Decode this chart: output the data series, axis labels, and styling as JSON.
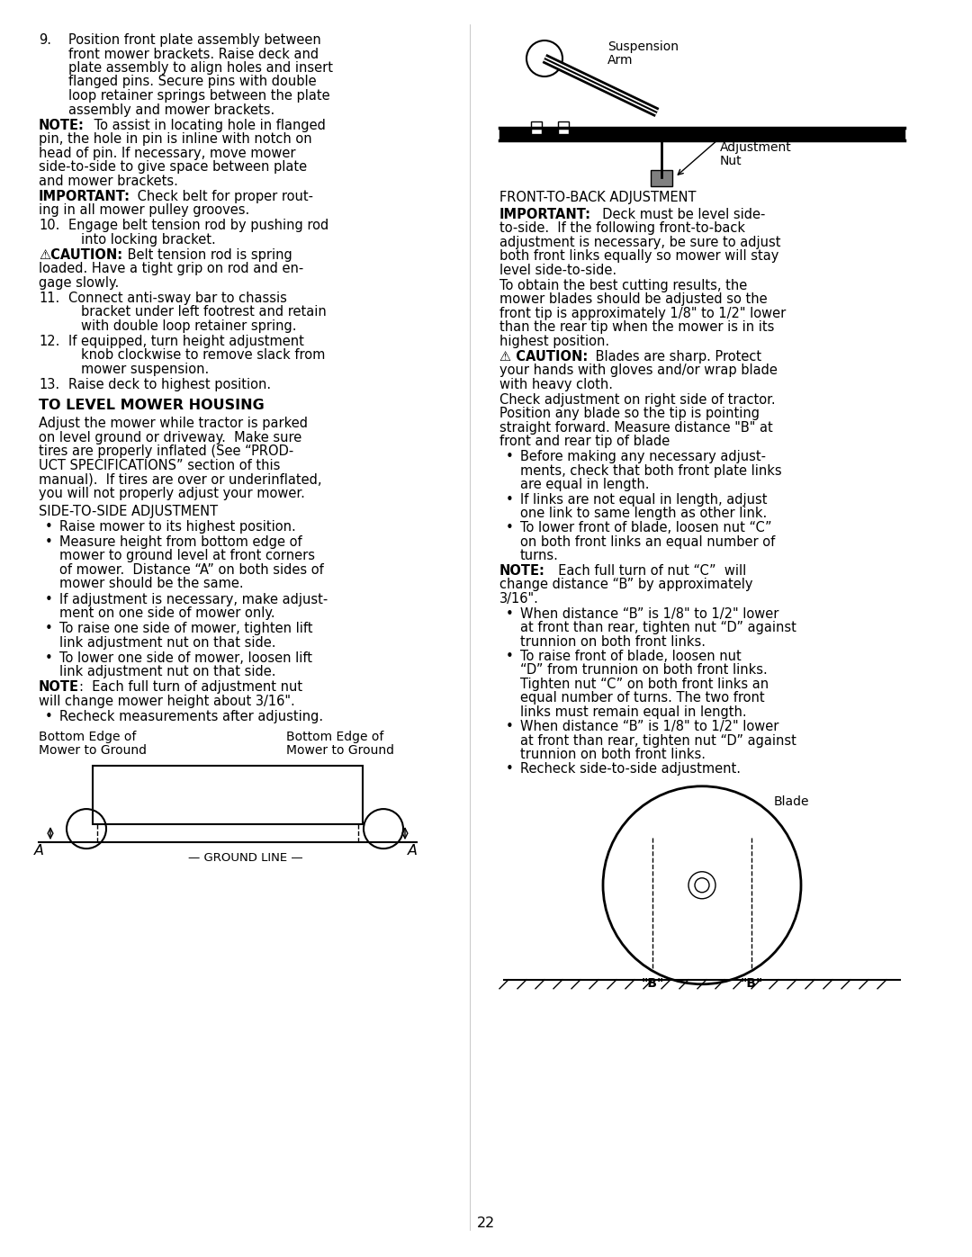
{
  "page_number": "22",
  "background_color": "#ffffff",
  "text_color": "#000000",
  "left_column": {
    "items": [
      {
        "type": "numbered_item",
        "number": "9.",
        "indent": 0.52,
        "text": "Position front plate assembly between\nfront mower brackets. Raise deck and\nplate assembly to align holes and insert\nflanged pins. Secure pins with double\nloop retainer springs between the plate\nassembly and mower brackets.",
        "bold_prefix": "",
        "font_size": 11.5
      },
      {
        "type": "paragraph",
        "bold_prefix": "NOTE:",
        "text": " To assist in locating hole in flanged\npin, the hole in pin is inline with notch on\nhead of pin. If necessary, move mower\nside-to-side to give space between plate\nand mower brackets.",
        "font_size": 11.5,
        "indent": 0.15
      },
      {
        "type": "paragraph",
        "bold_prefix": "IMPORTANT:",
        "text": "  Check belt for proper rout-\ning in all mower pulley grooves.",
        "font_size": 11.5,
        "indent": 0.15
      },
      {
        "type": "numbered_item",
        "number": "10.",
        "indent": 0.42,
        "text": "Engage belt tension rod by pushing rod\n    into locking bracket.",
        "bold_prefix": "",
        "font_size": 11.5
      },
      {
        "type": "caution",
        "bold_prefix": "⚠CAUTION:",
        "text": " Belt tension rod is spring\nloaded. Have a tight grip on rod and en-\ngage slowly.",
        "font_size": 11.5,
        "indent": 0.15
      },
      {
        "type": "numbered_item",
        "number": "11.",
        "indent": 0.42,
        "text": "Connect anti-sway bar to chassis\n      bracket under left footrest and retain\n      with double loop retainer spring.",
        "bold_prefix": "",
        "font_size": 11.5
      },
      {
        "type": "numbered_item",
        "number": "12.",
        "indent": 0.42,
        "text": "If equipped, turn height adjustment\n      knob clockwise to remove slack from\n      mower suspension.",
        "bold_prefix": "",
        "font_size": 11.5
      },
      {
        "type": "numbered_item",
        "number": "13.",
        "indent": 0.42,
        "text": "Raise deck to highest position.",
        "bold_prefix": "",
        "font_size": 11.5
      },
      {
        "type": "section_header",
        "text": "TO LEVEL MOWER HOUSING",
        "font_size": 12.5,
        "bold": true
      },
      {
        "type": "paragraph",
        "bold_prefix": "",
        "text": "Adjust the mower while tractor is parked\non level ground or driveway.  Make sure\ntires are properly inflated (See “PROD-\nUCT SPECIFICATIONS” section of this\nmanual).  If tires are over or underinflated,\nyou will not properly adjust your mower.",
        "font_size": 11.5,
        "indent": 0.15
      },
      {
        "type": "subsection_header",
        "text": "SIDE-TO-SIDE ADJUSTMENT",
        "font_size": 11.5,
        "bold": false
      },
      {
        "type": "bullet",
        "text": "Raise mower to its highest position.",
        "font_size": 11.5
      },
      {
        "type": "bullet",
        "text": "Measure height from bottom edge of\nmower to ground level at front corners\nof mower.  Distance “A” on both sides of\nmower should be the same.",
        "font_size": 11.5
      },
      {
        "type": "bullet",
        "text": "If adjustment is necessary, make adjust-\nment on one side of mower only.",
        "font_size": 11.5
      },
      {
        "type": "bullet",
        "text": "To raise one side of mower, tighten lift\nlink adjustment nut on that side.",
        "font_size": 11.5
      },
      {
        "type": "bullet",
        "text": "To lower one side of mower, loosen lift\nlink adjustment nut on that side.",
        "font_size": 11.5
      },
      {
        "type": "paragraph",
        "bold_prefix": "NOTE",
        "text": ":  Each full turn of adjustment nut\nwill change mower height about 3/16\".",
        "font_size": 11.5,
        "indent": 0.15
      },
      {
        "type": "bullet",
        "text": "Recheck measurements after adjusting.",
        "font_size": 11.5
      }
    ]
  },
  "right_column": {
    "items": [
      {
        "type": "diagram_top",
        "label": "suspension_arm_diagram"
      },
      {
        "type": "subsection_header",
        "text": "FRONT-TO-BACK ADJUSTMENT",
        "font_size": 11.5,
        "bold": false
      },
      {
        "type": "paragraph",
        "bold_prefix": "IMPORTANT:",
        "text": "  Deck must be level side-\nto-side.  If the following front-to-back\nadjustment is necessary, be sure to adjust\nboth front links equally so mower will stay\nlevel side-to-side.",
        "font_size": 11.5,
        "indent": 0.0
      },
      {
        "type": "paragraph",
        "bold_prefix": "",
        "text": "To obtain the best cutting results, the\nmower blades should be adjusted so the\nfront tip is approximately 1/8\" to 1/2\" lower\nthan the rear tip when the mower is in its\nhighest position.",
        "font_size": 11.5
      },
      {
        "type": "caution",
        "bold_prefix": "⚠ CAUTION:",
        "text": " Blades are sharp. Protect\nyour hands with gloves and/or wrap blade\nwith heavy cloth.",
        "font_size": 11.5
      },
      {
        "type": "paragraph",
        "bold_prefix": "",
        "text": "Check adjustment on right side of tractor.\nPosition any blade so the tip is pointing\nstraight forward. Measure distance “B” at\nfront and rear tip of blade",
        "font_size": 11.5
      },
      {
        "type": "bullet",
        "text": "Before making any necessary adjust-\nments, check that both front plate links\nare equal in length.",
        "font_size": 11.5
      },
      {
        "type": "bullet",
        "text": "If links are not equal in length, adjust\none link to same length as other link.",
        "font_size": 11.5
      },
      {
        "type": "bullet",
        "text": "To lower front of blade, loosen nut “C”\non both front links an equal number of\nturns.",
        "font_size": 11.5
      },
      {
        "type": "paragraph",
        "bold_prefix": "NOTE:",
        "text": "  Each full turn of nut “C”  will\nchange distance “B” by approximately\n3/16\".",
        "font_size": 11.5
      },
      {
        "type": "bullet",
        "text": "When distance “B” is 1/8\" to 1/2\" lower\nat front than rear, tighten nut “D” against\ntrunnion on both front links.",
        "font_size": 11.5
      },
      {
        "type": "bullet",
        "text": "To raise front of blade, loosen nut\n“D” from trunnion on both front links.\nTighten nut “C” on both front links an\nequal number of turns. The two front\nlinks must remain equal in length.",
        "font_size": 11.5
      },
      {
        "type": "bullet",
        "text": "When distance “B” is 1/8\" to 1/2\" lower\nat front than rear, tighten nut “D” against\ntrunnion on both front links.",
        "font_size": 11.5
      },
      {
        "type": "bullet",
        "text": "Recheck side-to-side adjustment.",
        "font_size": 11.5
      }
    ]
  }
}
